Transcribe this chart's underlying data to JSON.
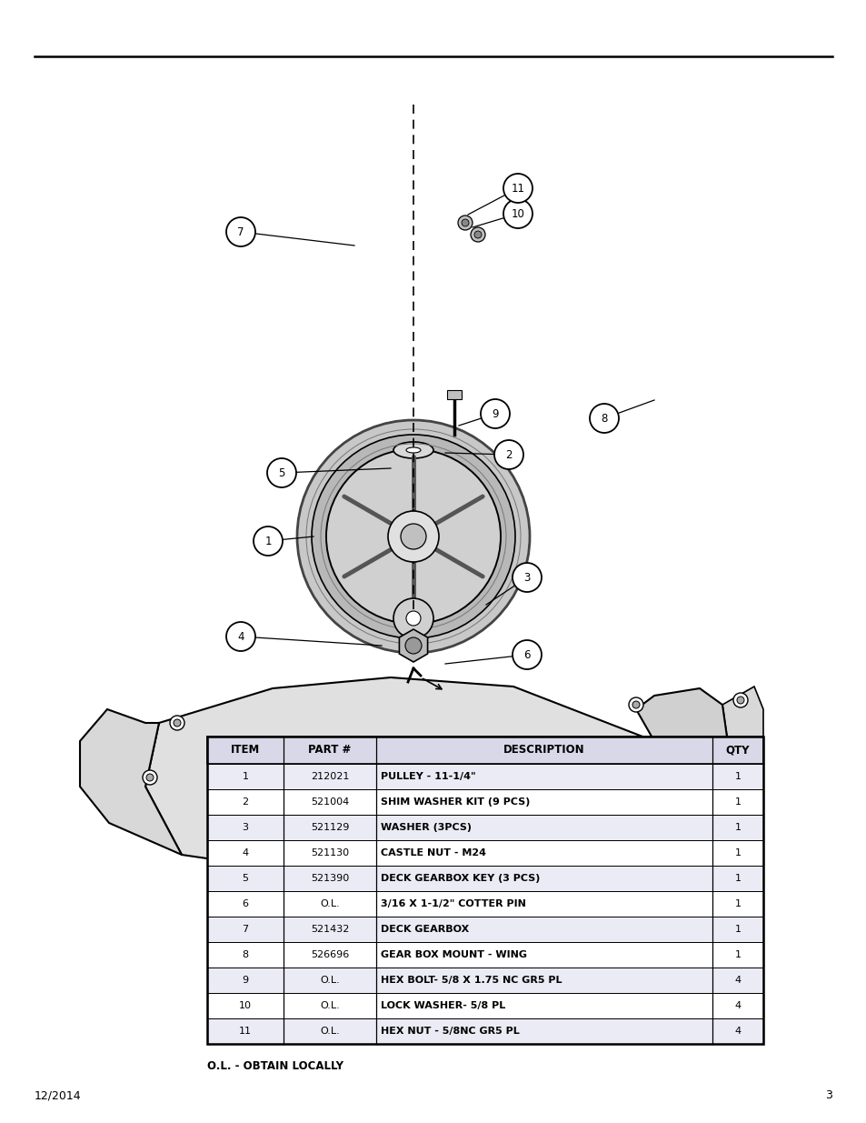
{
  "page_number": "3",
  "date": "12/2014",
  "table": {
    "headers": [
      "ITEM",
      "PART #",
      "DESCRIPTION",
      "QTY"
    ],
    "rows": [
      [
        "1",
        "212021",
        "PULLEY - 11-1/4\"",
        "1"
      ],
      [
        "2",
        "521004",
        "SHIM WASHER KIT (9 PCS)",
        "1"
      ],
      [
        "3",
        "521129",
        "WASHER (3PCS)",
        "1"
      ],
      [
        "4",
        "521130",
        "CASTLE NUT - M24",
        "1"
      ],
      [
        "5",
        "521390",
        "DECK GEARBOX KEY (3 PCS)",
        "1"
      ],
      [
        "6",
        "O.L.",
        "3/16 X 1-1/2\" COTTER PIN",
        "1"
      ],
      [
        "7",
        "521432",
        "DECK GEARBOX",
        "1"
      ],
      [
        "8",
        "526696",
        "GEAR BOX MOUNT - WING",
        "1"
      ],
      [
        "9",
        "O.L.",
        "HEX BOLT- 5/8 X 1.75 NC GR5 PL",
        "4"
      ],
      [
        "10",
        "O.L.",
        "LOCK WASHER- 5/8 PL",
        "4"
      ],
      [
        "11",
        "O.L.",
        "HEX NUT - 5/8NC GR5 PL",
        "4"
      ]
    ],
    "note": "O.L. - OBTAIN LOCALLY",
    "header_bg": "#d8d8e8",
    "row_bg_alt": "#ebebf5",
    "row_bg_norm": "#ffffff",
    "border_color": "#000000"
  }
}
